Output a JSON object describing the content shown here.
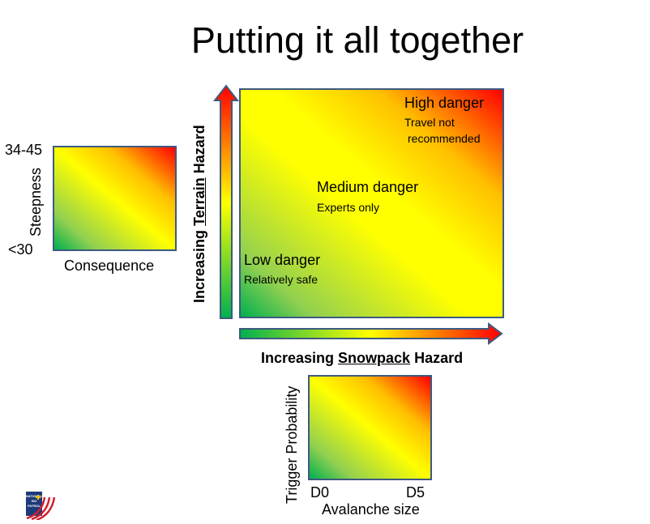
{
  "title": "Putting it all together",
  "left_box": {
    "y_top": "34-45",
    "y_bottom": "<30",
    "y_axis": "Steepness",
    "x_axis": "Consequence"
  },
  "main": {
    "terrain_axis": {
      "pre": "Increasing ",
      "key": "Terrain",
      "post": " Hazard"
    },
    "snowpack_axis": {
      "pre": "Increasing ",
      "key": "Snowpack",
      "post": " Hazard"
    },
    "zones": {
      "high": {
        "name": "High danger",
        "note_1": "Travel not",
        "note_2": "recommended"
      },
      "medium": {
        "name": "Medium danger",
        "note": "Experts only"
      },
      "low": {
        "name": "Low danger",
        "note": "Relatively safe"
      }
    }
  },
  "bottom_box": {
    "y_axis": "Trigger Probability",
    "x_min": "D0",
    "x_max": "D5",
    "x_axis": "Avalanche size"
  },
  "logo": {
    "text_lines": [
      "NATIONAL",
      "SKI",
      "PATROL"
    ]
  },
  "colors": {
    "low": "#00b050",
    "mid": "#ffff00",
    "high": "#ff0000",
    "border": "#3d5a80"
  }
}
